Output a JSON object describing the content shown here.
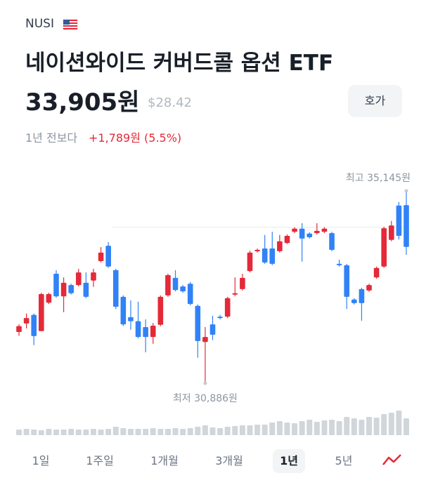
{
  "header": {
    "ticker": "NUSI",
    "title": "네이션와이드 커버드콜 옵션 ETF",
    "price": "33,905원",
    "usd_price": "$28.42",
    "button": "호가",
    "change_label": "1년 전보다",
    "change": "+1,789원 (5.5%)"
  },
  "chart_data": {
    "type": "candlestick",
    "up_color": "#e42939",
    "down_color": "#3182f6",
    "volume_color": "#d1d6db",
    "reference_value": 34340,
    "reference_color": "#e5e8eb",
    "high_label": "최고 35,145원",
    "low_label": "최저 30,886원",
    "open": [
      32020,
      32210,
      32400,
      32040,
      32670,
      33310,
      32810,
      33060,
      33060,
      33110,
      33160,
      33590,
      33930,
      33390,
      32800,
      32350,
      32260,
      32130,
      31910,
      32180,
      32830,
      33220,
      33030,
      33090,
      32600,
      31800,
      32190,
      32360,
      32360,
      32850,
      32970,
      33370,
      33810,
      33870,
      33870,
      33810,
      33990,
      34240,
      34310,
      34200,
      34210,
      34240,
      34210,
      33530,
      33500,
      32740,
      32970,
      32940,
      33230,
      33470,
      34060,
      34820,
      34830
    ],
    "high": [
      32190,
      32430,
      32430,
      32890,
      32890,
      33390,
      33230,
      33090,
      33420,
      33340,
      33420,
      33900,
      34010,
      33420,
      32830,
      32720,
      32690,
      32300,
      32220,
      32830,
      33310,
      33390,
      33060,
      33130,
      32630,
      32130,
      32380,
      32400,
      32800,
      33230,
      33310,
      33820,
      33870,
      34170,
      34240,
      34170,
      34180,
      34340,
      34430,
      34230,
      34430,
      34340,
      34240,
      33620,
      33530,
      32770,
      33000,
      33090,
      33470,
      34350,
      34480,
      34900,
      35145
    ],
    "low": [
      31940,
      32100,
      31730,
      32040,
      32640,
      32780,
      32460,
      32850,
      33030,
      32770,
      33020,
      33560,
      33440,
      32530,
      32150,
      32070,
      31880,
      31570,
      31760,
      32150,
      32800,
      32920,
      32890,
      32610,
      31450,
      30886,
      31840,
      32300,
      32330,
      32810,
      32940,
      33340,
      33780,
      33530,
      33500,
      33780,
      33970,
      34210,
      33580,
      34090,
      34180,
      34210,
      33810,
      33470,
      32530,
      32630,
      32270,
      32910,
      33200,
      33440,
      34030,
      34070,
      33730
    ],
    "close": [
      32150,
      32330,
      31930,
      32860,
      32860,
      32810,
      33110,
      32880,
      33340,
      32800,
      33340,
      33780,
      33470,
      32580,
      32190,
      32260,
      31910,
      31910,
      32160,
      32800,
      33280,
      32950,
      32920,
      32640,
      31820,
      31910,
      31960,
      32330,
      32770,
      32880,
      33220,
      33780,
      33840,
      33560,
      33530,
      34030,
      34150,
      34310,
      34090,
      34120,
      34260,
      34310,
      33840,
      33500,
      32800,
      32660,
      32660,
      33060,
      33440,
      34320,
      34380,
      34150,
      33905
    ],
    "volume": [
      8,
      9,
      8,
      7,
      9,
      8,
      8,
      9,
      8,
      8,
      9,
      8,
      9,
      12,
      10,
      9,
      9,
      9,
      10,
      9,
      9,
      10,
      9,
      10,
      12,
      14,
      11,
      10,
      12,
      13,
      14,
      14,
      15,
      15,
      18,
      20,
      18,
      17,
      20,
      22,
      19,
      21,
      22,
      20,
      26,
      24,
      22,
      26,
      25,
      30,
      32,
      35,
      24
    ]
  },
  "tabs": [
    "1일",
    "1주일",
    "1개월",
    "3개월",
    "1년",
    "5년"
  ],
  "selected_tab": 4
}
